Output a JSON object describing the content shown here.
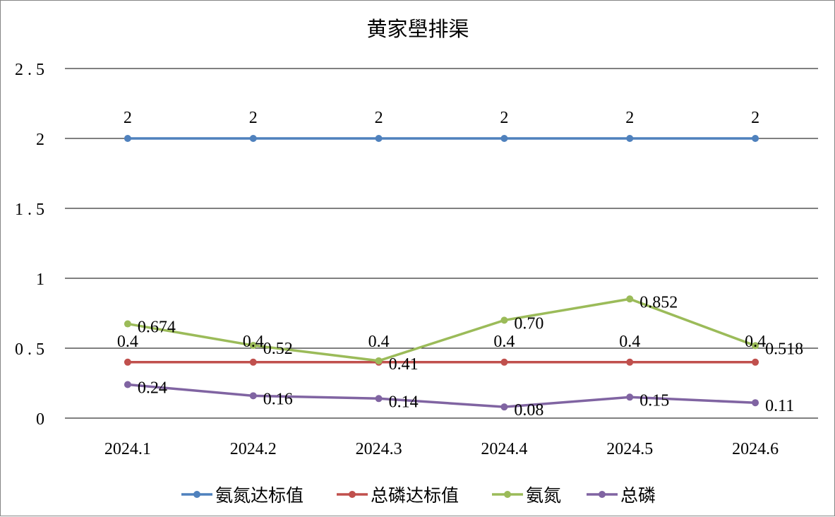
{
  "chart_data": {
    "type": "line",
    "title": "黄家壆排渠",
    "xlabel": "",
    "ylabel": "",
    "categories": [
      "2024.1",
      "2024.2",
      "2024.3",
      "2024.4",
      "2024.5",
      "2024.6"
    ],
    "ylim": [
      0,
      2.5
    ],
    "yticks": [
      0,
      0.5,
      1,
      1.5,
      2,
      2.5
    ],
    "ytick_labels": [
      "0",
      "0.5",
      "1",
      "1.5",
      "2",
      "2.5"
    ],
    "grid": true,
    "legend_position": "bottom",
    "series": [
      {
        "name": "氨氮达标值",
        "color": "#4f81bd",
        "values": [
          2,
          2,
          2,
          2,
          2,
          2
        ],
        "labels": [
          "2",
          "2",
          "2",
          "2",
          "2",
          "2"
        ]
      },
      {
        "name": "总磷达标值",
        "color": "#c0504d",
        "values": [
          0.4,
          0.4,
          0.4,
          0.4,
          0.4,
          0.4
        ],
        "labels": [
          "0.4",
          "0.4",
          "0.4",
          "0.4",
          "0.4",
          "0.4"
        ]
      },
      {
        "name": "氨氮",
        "color": "#9bbb59",
        "values": [
          0.674,
          0.52,
          0.41,
          0.7,
          0.852,
          0.518
        ],
        "labels": [
          "0.674",
          "0.52",
          "0.41",
          "0.70",
          "0.852",
          "0.518"
        ]
      },
      {
        "name": "总磷",
        "color": "#8064a2",
        "values": [
          0.24,
          0.16,
          0.14,
          0.08,
          0.15,
          0.11
        ],
        "labels": [
          "0.24",
          "0.16",
          "0.14",
          "0.08",
          "0.15",
          "0.11"
        ]
      }
    ]
  }
}
